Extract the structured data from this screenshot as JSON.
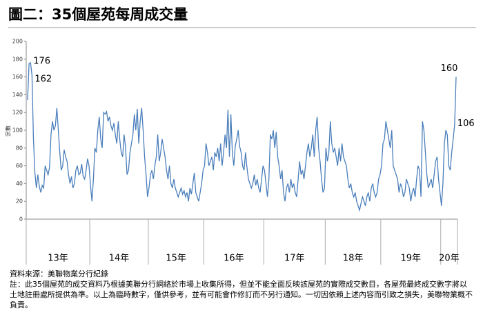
{
  "chart_data": {
    "type": "line",
    "title": "圖二：35個屋苑每周成交量",
    "y_label": "宗數",
    "color": "#4a7ebb",
    "ylim": [
      0,
      200
    ],
    "yticks": [
      0,
      20,
      40,
      60,
      80,
      100,
      120,
      140,
      160,
      180,
      200
    ],
    "grid": false,
    "groups": [
      {
        "label": "13年",
        "values": [
          134,
          175,
          176,
          162,
          90,
          52,
          35,
          50,
          37,
          30,
          38,
          35,
          60,
          55,
          50,
          58,
          95,
          110,
          100,
          105,
          125,
          100,
          75,
          55,
          60,
          78,
          70,
          65,
          50,
          40,
          48,
          35,
          40,
          55,
          60,
          50,
          52,
          62,
          48,
          45,
          55,
          68,
          60
        ]
      },
      {
        "label": "14年",
        "values": [
          38,
          20,
          45,
          80,
          75,
          100,
          115,
          90,
          80,
          120,
          118,
          121,
          110,
          115,
          105,
          100,
          108,
          95,
          85,
          110,
          90,
          75,
          70,
          95,
          80,
          50,
          55,
          75,
          85,
          95,
          118,
          100,
          124,
          85,
          110,
          125,
          100,
          70,
          50,
          25
        ]
      },
      {
        "label": "15年",
        "values": [
          35,
          50,
          55,
          45,
          60,
          70,
          95,
          65,
          75,
          90,
          80,
          70,
          55,
          45,
          60,
          40,
          35,
          45,
          35,
          30,
          25,
          30,
          35,
          28,
          32,
          25,
          30,
          20,
          35,
          28,
          40,
          52,
          30,
          25,
          20,
          30,
          40,
          55
        ]
      },
      {
        "label": "16年",
        "values": [
          60,
          85,
          75,
          60,
          65,
          70,
          55,
          75,
          70,
          80,
          65,
          85,
          60,
          75,
          95,
          80,
          123,
          70,
          118,
          75,
          60,
          82,
          90,
          100,
          82,
          75,
          60,
          55,
          75,
          58,
          45,
          40,
          35,
          40,
          50,
          38,
          45,
          35,
          30,
          45,
          60
        ]
      },
      {
        "label": "17年",
        "values": [
          55,
          40,
          25,
          45,
          95,
          90,
          100,
          80,
          98,
          70,
          60,
          45,
          55,
          30,
          20,
          35,
          40,
          30,
          45,
          35,
          40,
          30,
          25,
          45,
          65,
          50,
          55,
          45,
          60,
          75,
          85,
          70,
          80,
          95,
          70,
          100,
          115,
          80,
          65,
          45,
          30,
          35
        ]
      },
      {
        "label": "18年",
        "values": [
          80,
          65,
          75,
          110,
          85,
          75,
          80,
          70,
          60,
          80,
          65,
          85,
          70,
          65,
          60,
          45,
          35,
          40,
          30,
          25,
          30,
          20,
          15,
          10,
          18,
          25,
          20,
          15,
          25,
          30,
          20,
          35,
          40,
          30,
          25,
          30,
          45,
          50
        ]
      },
      {
        "label": "19年",
        "values": [
          60,
          85,
          90,
          110,
          100,
          90,
          80,
          100,
          60,
          55,
          50,
          45,
          30,
          40,
          35,
          25,
          30,
          45,
          40,
          35,
          20,
          30,
          35,
          25,
          45,
          60,
          55,
          25,
          110,
          100,
          75,
          50,
          35,
          40,
          45,
          35,
          50,
          65,
          70,
          45,
          30
        ]
      },
      {
        "label": "20年",
        "values": [
          15,
          40,
          85,
          100,
          95,
          60,
          55,
          75,
          90,
          106,
          160
        ]
      }
    ],
    "annotations": [
      176,
      162,
      160,
      106
    ],
    "source": "資料來源：美聯物業分行紀錄",
    "note": "註：此35個屋苑的成交資料乃根據美聯分行網絡於市場上收集所得，但並不能全面反映該屋苑的實際成交數目，各屋苑最終成交數字將以土地註冊處所提供為準。以上為臨時數字，僅供參考，並有可能會作修訂而不另行通知。一切因依賴上述內容而引致之損失，美聯物業概不負責。"
  }
}
